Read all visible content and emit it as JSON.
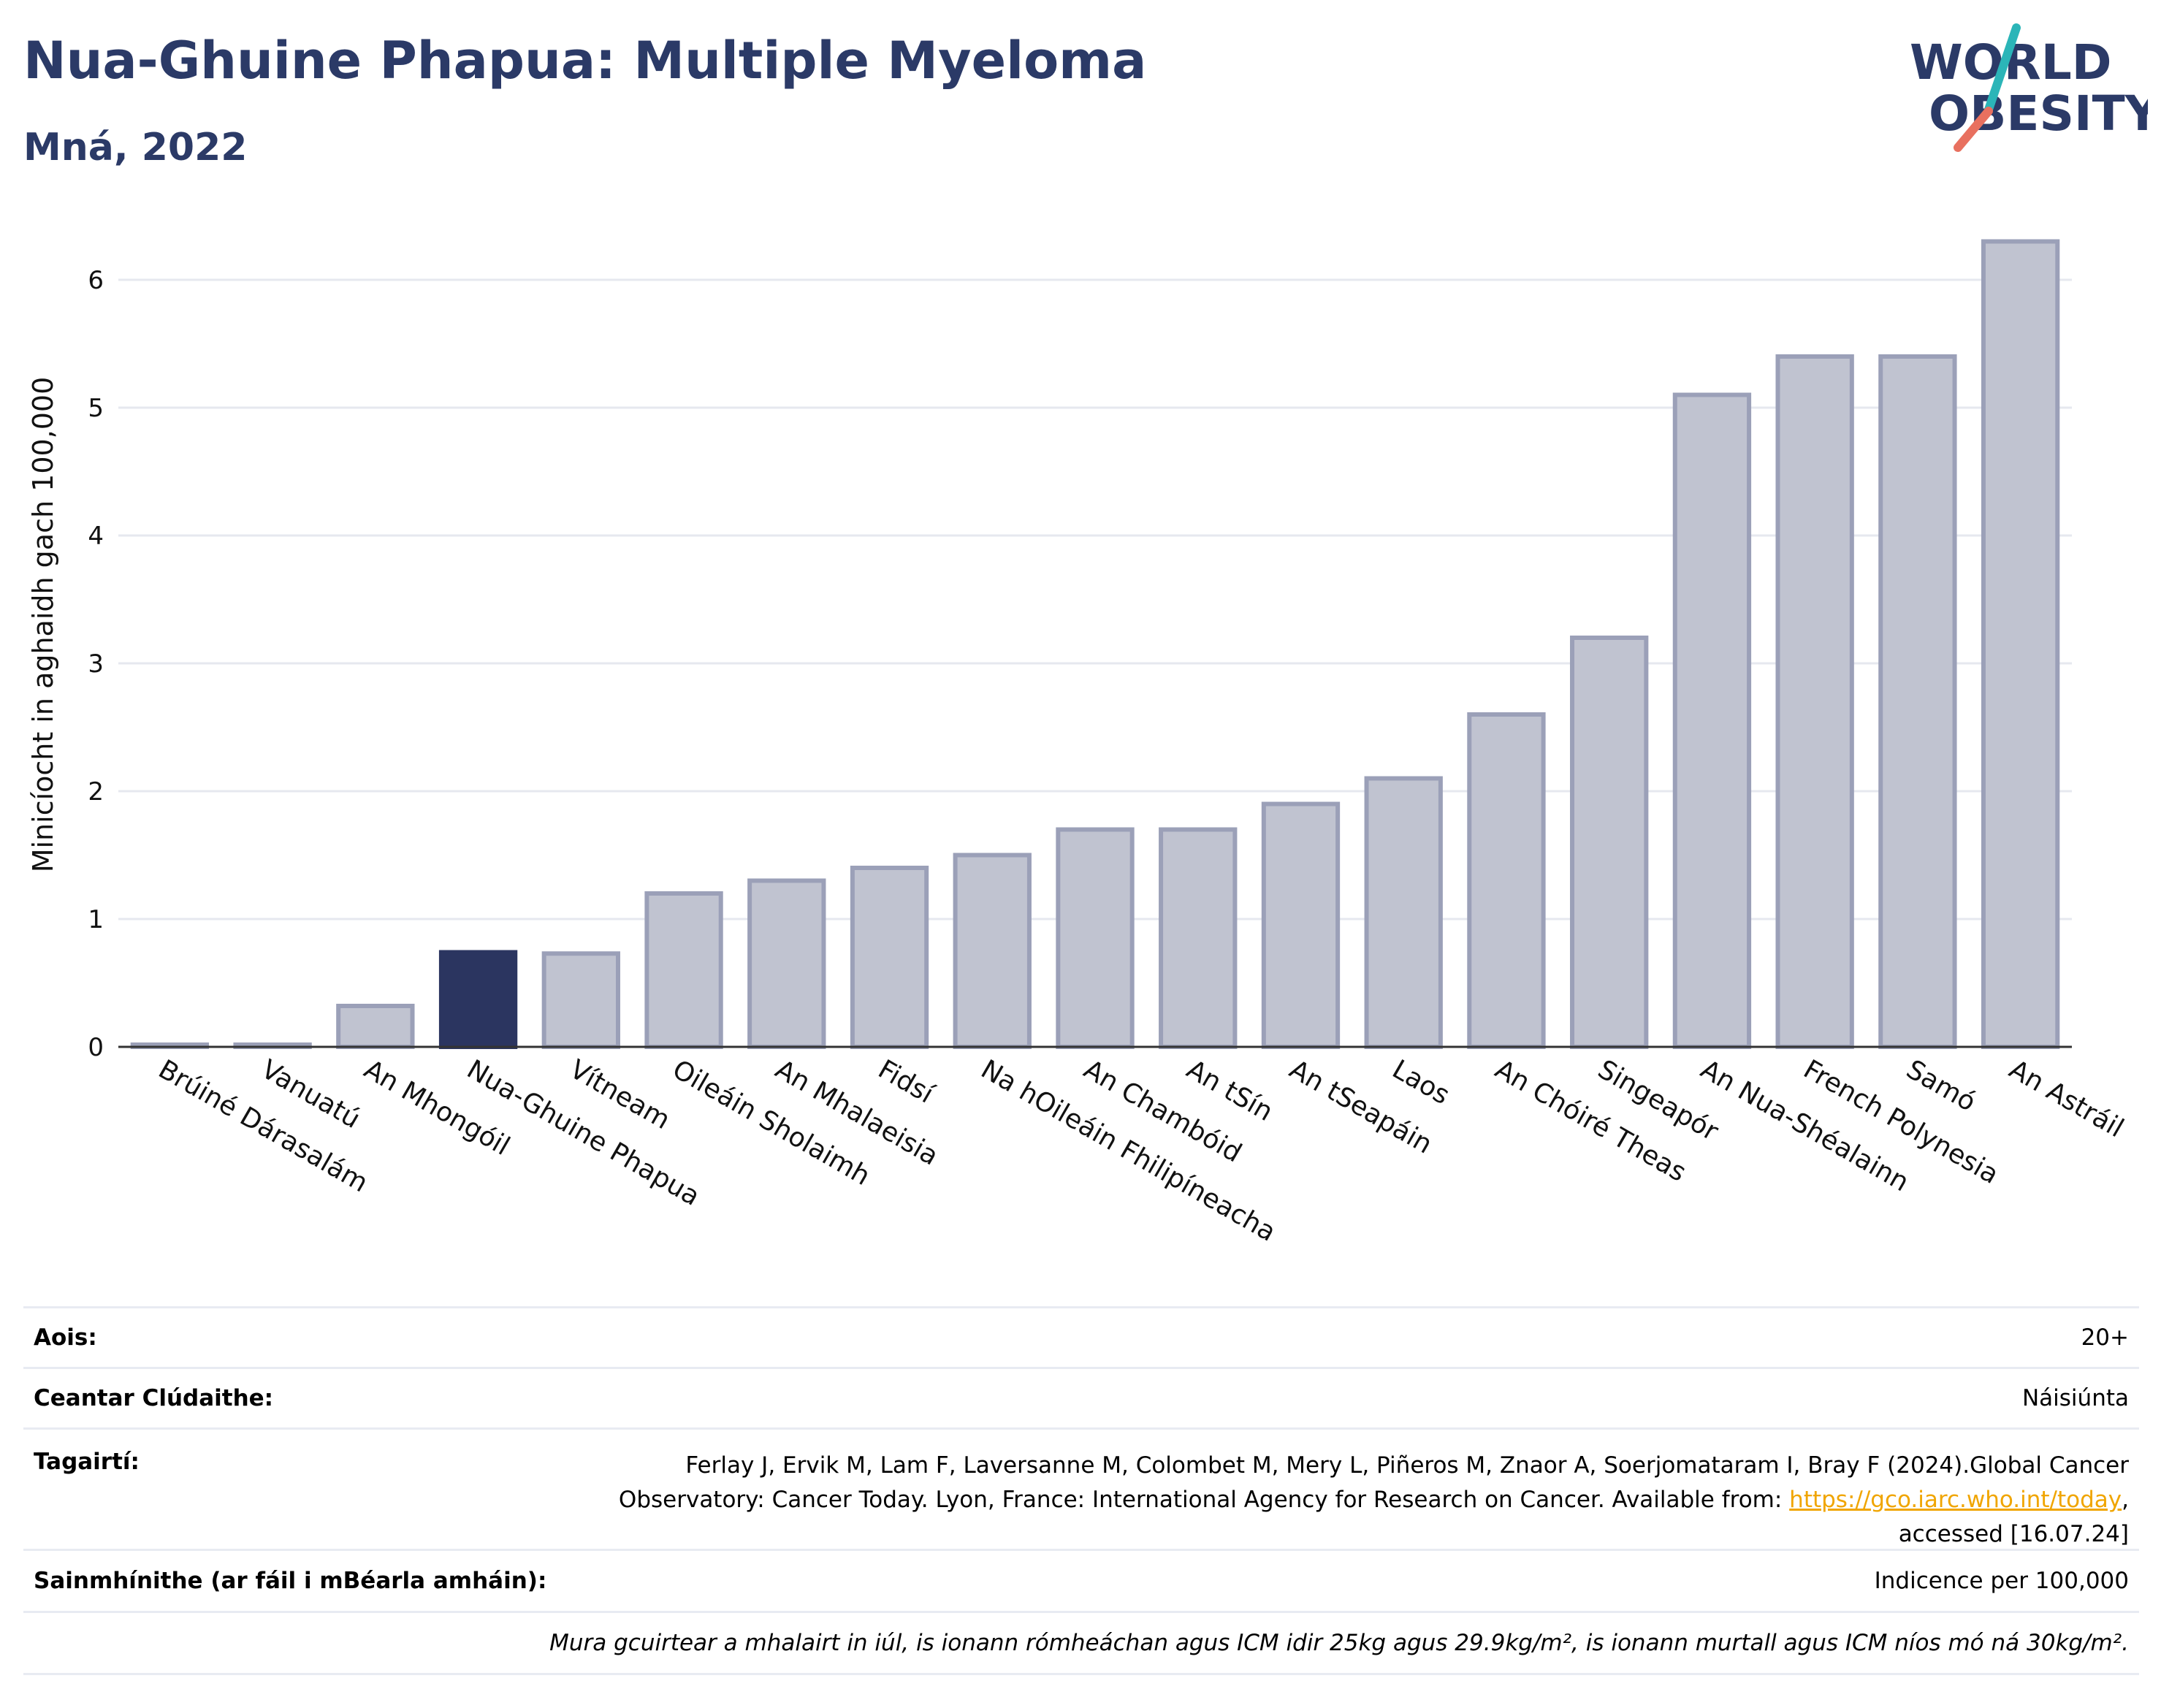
{
  "header": {
    "title": "Nua-Ghuine Phapua: Multiple Myeloma",
    "subtitle": "Mná, 2022",
    "logo_text_line1": "WORLD",
    "logo_text_line2": "OBESITY"
  },
  "chart_data": {
    "type": "bar",
    "ylabel": "Minicíocht in aghaidh gach 100,000",
    "ylim": [
      0,
      6.5
    ],
    "yticks": [
      0,
      1,
      2,
      3,
      4,
      5,
      6
    ],
    "grid": true,
    "highlight_category": "Nua-Ghuine Phapua",
    "colors": {
      "bar": "#c0c3d0",
      "bar_stroke": "#9ba0b8",
      "highlight": "#2b3560"
    },
    "categories": [
      "Brúiné Dárasalám",
      "Vanuatú",
      "An Mhongóil",
      "Nua-Ghuine Phapua",
      "Vítneam",
      "Oileáin Sholaimh",
      "An Mhalaeisia",
      "Fidsí",
      "Na hOileáin Fhilipíneacha",
      "An Chambóid",
      "An tSín",
      "An tSeapáin",
      "Laos",
      "An Chóiré Theas",
      "Singeapór",
      "An Nua-Shéalainn",
      "French Polynesia",
      "Samó",
      "An Astráil"
    ],
    "values": [
      0.01,
      0.01,
      0.32,
      0.74,
      0.73,
      1.2,
      1.3,
      1.4,
      1.5,
      1.7,
      1.7,
      1.9,
      2.1,
      2.6,
      3.2,
      5.1,
      5.4,
      5.4,
      6.3
    ]
  },
  "meta": {
    "age_label": "Aois:",
    "age_value": "20+",
    "coverage_label": "Ceantar Clúdaithe:",
    "coverage_value": "Náisiúnta",
    "refs_label": "Tagairtí:",
    "refs_text_1": "Ferlay J, Ervik M, Lam F, Laversanne M, Colombet M, Mery L, Piñeros M, Znaor A, Soerjomataram I, Bray F (2024).Global Cancer Observatory: Cancer Today. Lyon, France: International Agency for Research on Cancer. Available from: ",
    "refs_link": "https://gco.iarc.who.int/today",
    "refs_text_2": ", accessed [16.07.24]",
    "defs_label": "Sainmhínithe (ar fáil i mBéarla amháin):",
    "defs_value": "Indicence per 100,000",
    "note": "Mura gcuirtear a mhalairt in iúl, is ionann rómheáchan agus ICM idir 25kg agus 29.9kg/m², is ionann murtall agus ICM níos mó ná 30kg/m²."
  }
}
